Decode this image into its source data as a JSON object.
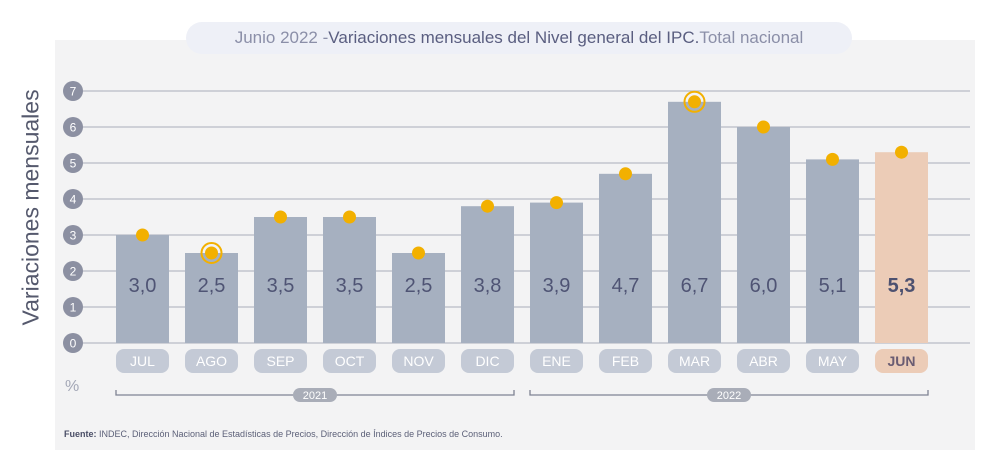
{
  "title": {
    "prefix": "Junio 2022 - ",
    "main": "Variaciones mensuales del Nivel general del IPC.",
    "suffix": " Total nacional"
  },
  "y_axis_label": "Variaciones mensuales",
  "unit_label": "%",
  "source": {
    "label": "Fuente:",
    "text": " INDEC, Dirección Nacional de Estadísticas de Precios, Dirección de Índices de Precios de Consumo."
  },
  "colors": {
    "bar": "#a6b0c0",
    "bar_highlight": "#ecccb7",
    "marker": "#f2b000",
    "grid": "#b7bac5",
    "tick_circle": "#8c90a2",
    "month_pill": "#c4cad6",
    "month_pill_highlight": "#ecccb7",
    "year_pill": "#a9adb8"
  },
  "chart_data": {
    "type": "bar",
    "categories": [
      "JUL",
      "AGO",
      "SEP",
      "OCT",
      "NOV",
      "DIC",
      "ENE",
      "FEB",
      "MAR",
      "ABR",
      "MAY",
      "JUN"
    ],
    "bar_labels": [
      "3,0",
      "2,5",
      "3,5",
      "3,5",
      "2,5",
      "3,8",
      "3,9",
      "4,7",
      "6,7",
      "6,0",
      "5,1",
      "5,3"
    ],
    "values": [
      3.0,
      2.5,
      3.5,
      3.5,
      2.5,
      3.8,
      3.9,
      4.7,
      6.7,
      6.0,
      5.1,
      5.3
    ],
    "highlight_index": 11,
    "ring_markers": [
      1,
      8
    ],
    "yticks": [
      "0",
      "1",
      "2",
      "3",
      "4",
      "5",
      "6",
      "7"
    ],
    "ylim": [
      0,
      7
    ],
    "years": [
      {
        "label": "2021",
        "start": 0,
        "end": 5
      },
      {
        "label": "2022",
        "start": 6,
        "end": 11
      }
    ]
  }
}
